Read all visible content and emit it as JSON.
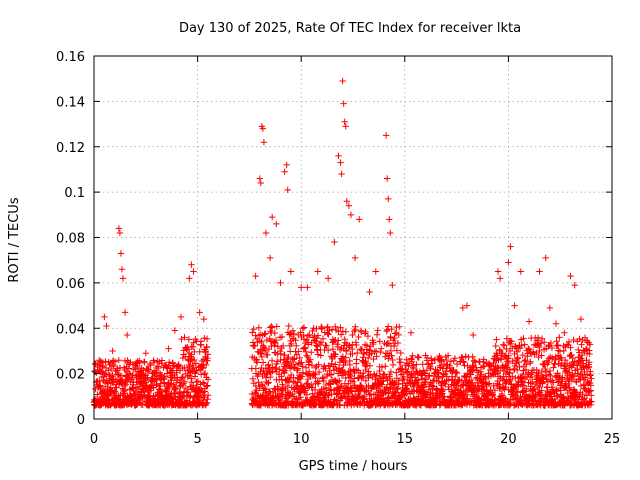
{
  "chart_data": {
    "type": "scatter",
    "title": "Day 130 of 2025, Rate Of TEC Index for receiver lkta",
    "xlabel": "GPS time / hours",
    "ylabel": "ROTI / TECUs",
    "xlim": [
      0,
      25
    ],
    "ylim": [
      0,
      0.16
    ],
    "x_ticks": [
      0,
      5,
      10,
      15,
      20,
      25
    ],
    "x_tick_labels": [
      "0",
      "5",
      "10",
      "15",
      "20",
      "25"
    ],
    "y_ticks": [
      0,
      0.02,
      0.04,
      0.06,
      0.08,
      0.1,
      0.12,
      0.14,
      0.16
    ],
    "y_tick_labels": [
      "0",
      "0.02",
      "0.04",
      "0.06",
      "0.08",
      "0.1",
      "0.12",
      "0.14",
      "0.16"
    ],
    "grid": true,
    "marker": "+",
    "marker_color": "#ff0000",
    "data_gap_hours": [
      5.5,
      7.6
    ],
    "series": [
      {
        "name": "ROTI",
        "points": [
          [
            0.3,
            0.025
          ],
          [
            0.5,
            0.045
          ],
          [
            0.6,
            0.041
          ],
          [
            0.9,
            0.03
          ],
          [
            1.2,
            0.084
          ],
          [
            1.25,
            0.082
          ],
          [
            1.3,
            0.073
          ],
          [
            1.35,
            0.066
          ],
          [
            1.4,
            0.062
          ],
          [
            1.5,
            0.047
          ],
          [
            1.6,
            0.037
          ],
          [
            2.5,
            0.029
          ],
          [
            2.9,
            0.025
          ],
          [
            3.6,
            0.031
          ],
          [
            3.9,
            0.039
          ],
          [
            4.2,
            0.045
          ],
          [
            4.6,
            0.062
          ],
          [
            4.7,
            0.068
          ],
          [
            4.8,
            0.065
          ],
          [
            5.1,
            0.047
          ],
          [
            5.3,
            0.044
          ],
          [
            7.8,
            0.063
          ],
          [
            8.0,
            0.106
          ],
          [
            8.05,
            0.104
          ],
          [
            8.1,
            0.129
          ],
          [
            8.15,
            0.128
          ],
          [
            8.2,
            0.122
          ],
          [
            8.3,
            0.082
          ],
          [
            8.5,
            0.071
          ],
          [
            8.6,
            0.089
          ],
          [
            8.8,
            0.086
          ],
          [
            9.0,
            0.06
          ],
          [
            9.2,
            0.109
          ],
          [
            9.3,
            0.112
          ],
          [
            9.35,
            0.101
          ],
          [
            9.5,
            0.065
          ],
          [
            10.0,
            0.058
          ],
          [
            10.3,
            0.058
          ],
          [
            10.8,
            0.065
          ],
          [
            11.3,
            0.062
          ],
          [
            11.6,
            0.078
          ],
          [
            11.8,
            0.116
          ],
          [
            11.9,
            0.113
          ],
          [
            11.95,
            0.108
          ],
          [
            12.0,
            0.149
          ],
          [
            12.05,
            0.139
          ],
          [
            12.1,
            0.131
          ],
          [
            12.15,
            0.129
          ],
          [
            12.2,
            0.096
          ],
          [
            12.3,
            0.094
          ],
          [
            12.4,
            0.09
          ],
          [
            12.6,
            0.071
          ],
          [
            12.8,
            0.088
          ],
          [
            13.3,
            0.056
          ],
          [
            13.6,
            0.065
          ],
          [
            14.1,
            0.125
          ],
          [
            14.15,
            0.106
          ],
          [
            14.2,
            0.097
          ],
          [
            14.25,
            0.088
          ],
          [
            14.3,
            0.082
          ],
          [
            14.4,
            0.059
          ],
          [
            15.3,
            0.038
          ],
          [
            16.0,
            0.028
          ],
          [
            17.0,
            0.026
          ],
          [
            17.8,
            0.049
          ],
          [
            18.0,
            0.05
          ],
          [
            18.3,
            0.037
          ],
          [
            19.5,
            0.065
          ],
          [
            19.6,
            0.062
          ],
          [
            20.0,
            0.069
          ],
          [
            20.1,
            0.076
          ],
          [
            20.3,
            0.05
          ],
          [
            20.6,
            0.065
          ],
          [
            21.0,
            0.043
          ],
          [
            21.5,
            0.065
          ],
          [
            21.8,
            0.071
          ],
          [
            22.0,
            0.049
          ],
          [
            22.3,
            0.042
          ],
          [
            22.7,
            0.038
          ],
          [
            23.0,
            0.063
          ],
          [
            23.2,
            0.059
          ],
          [
            23.5,
            0.044
          ],
          [
            23.9,
            0.025
          ]
        ],
        "dense_band_note": "continuous dense band of points between roughly 0.005 and 0.03 TECU/s across 0-5.5 h and 7.6-24 h"
      }
    ]
  }
}
